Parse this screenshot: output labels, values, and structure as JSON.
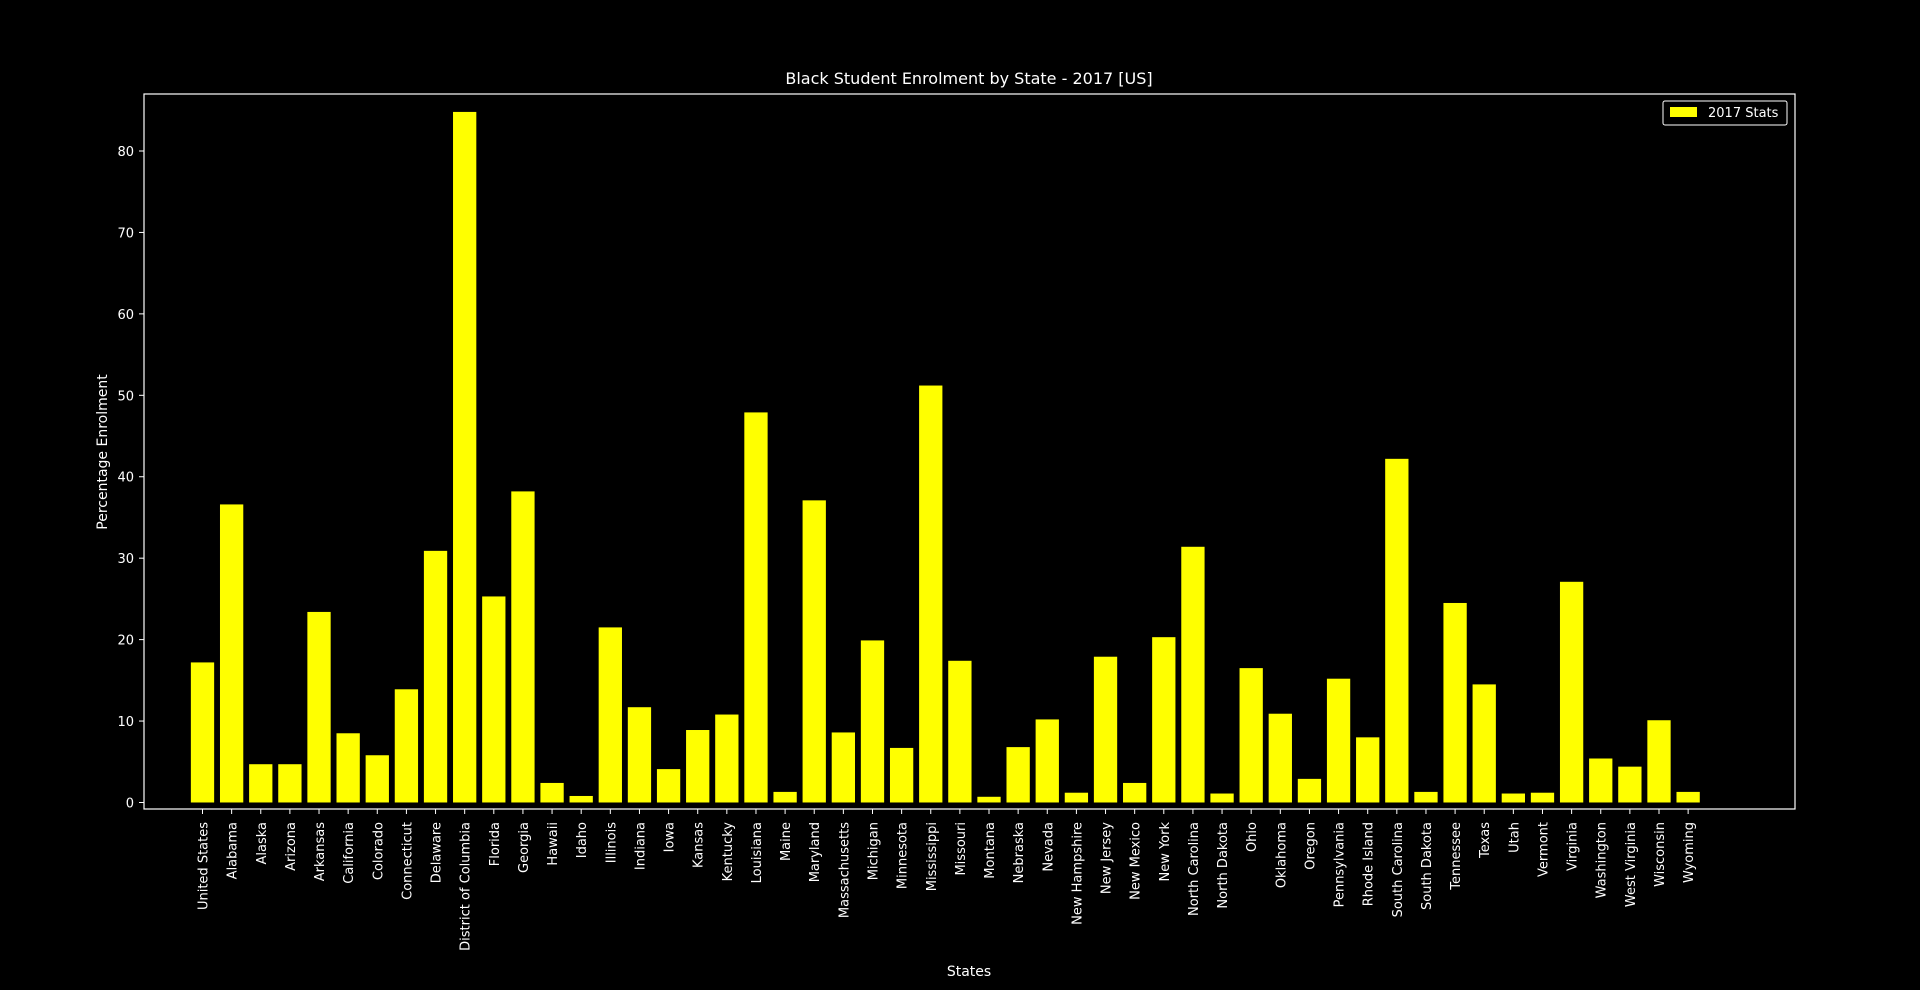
{
  "chart_data": {
    "type": "bar",
    "title": "Black Student Enrolment by State - 2017 [US]",
    "xlabel": "States",
    "ylabel": "Percentage Enrolment",
    "ylim": [
      -0.8,
      87
    ],
    "yticks": [
      "0",
      "10",
      "20",
      "30",
      "40",
      "50",
      "60",
      "70",
      "80"
    ],
    "grid": false,
    "legend_position": "top-right",
    "background_color": "#000000",
    "axes_color": "#ffffff",
    "bar_color": "#ffff00",
    "series": [
      {
        "name": "2017 Stats",
        "values": [
          17.2,
          36.6,
          4.7,
          4.7,
          23.4,
          8.5,
          5.8,
          13.9,
          30.9,
          84.8,
          25.3,
          38.2,
          2.4,
          0.8,
          21.5,
          11.7,
          4.1,
          8.9,
          10.8,
          47.9,
          1.3,
          37.1,
          8.6,
          19.9,
          6.7,
          51.2,
          17.4,
          0.7,
          6.8,
          10.2,
          1.2,
          17.9,
          2.4,
          20.3,
          31.4,
          1.1,
          16.5,
          10.9,
          2.9,
          15.2,
          8.0,
          42.2,
          1.3,
          24.5,
          14.5,
          1.1,
          1.2,
          27.1,
          5.4,
          4.4,
          10.1,
          1.3
        ]
      }
    ],
    "categories": [
      "United States",
      "Alabama",
      "Alaska",
      "Arizona",
      "Arkansas",
      "California",
      "Colorado",
      "Connecticut",
      "Delaware",
      "District of Columbia",
      "Florida",
      "Georgia",
      "Hawaii",
      "Idaho",
      "Illinois",
      "Indiana",
      "Iowa",
      "Kansas",
      "Kentucky",
      "Louisiana",
      "Maine",
      "Maryland",
      "Massachusetts",
      "Michigan",
      "Minnesota",
      "Mississippi",
      "Missouri",
      "Montana",
      "Nebraska",
      "Nevada",
      "New Hampshire",
      "New Jersey",
      "New Mexico",
      "New York",
      "North Carolina",
      "North Dakota",
      "Ohio",
      "Oklahoma",
      "Oregon",
      "Pennsylvania",
      "Rhode Island",
      "South Carolina",
      "South Dakota",
      "Tennessee",
      "Texas",
      "Utah",
      "Vermont",
      "Virginia",
      "Washington",
      "West Virginia",
      "Wisconsin",
      "Wyoming"
    ]
  }
}
